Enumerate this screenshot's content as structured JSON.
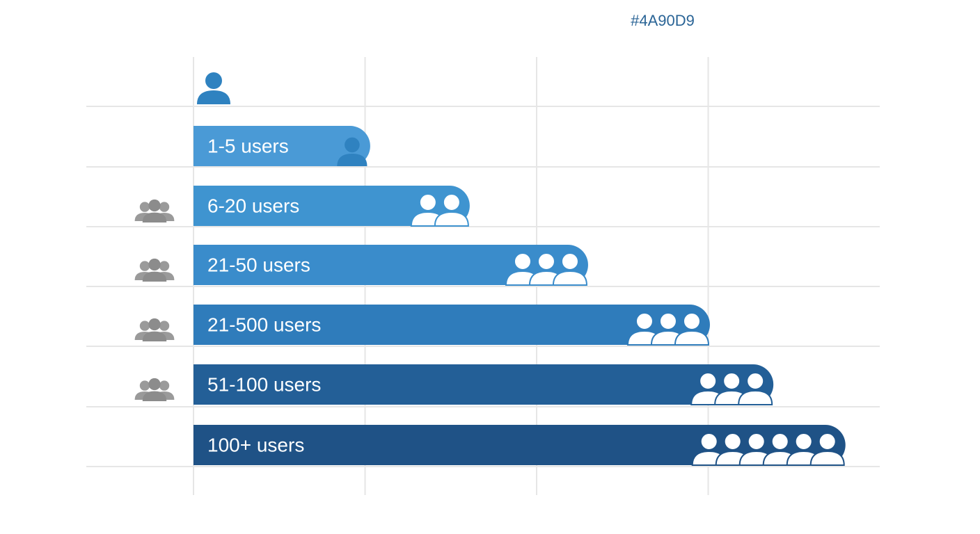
{
  "chart_data": {
    "type": "bar",
    "orientation": "horizontal",
    "title": "#4A90D9",
    "categories": [
      "1-5 users",
      "6-20 users",
      "21-50 users",
      "21-500 users",
      "51-100 users",
      "100+ users"
    ],
    "values": [
      1.03,
      1.61,
      2.3,
      3.01,
      3.38,
      3.8
    ],
    "colors": [
      "#4a9ad6",
      "#3f94d0",
      "#3a8ccb",
      "#2f7cbb",
      "#235f97",
      "#1f5286"
    ],
    "xlim": [
      0,
      4
    ],
    "xticks": [
      0,
      1,
      2,
      3
    ],
    "grid": true
  }
}
